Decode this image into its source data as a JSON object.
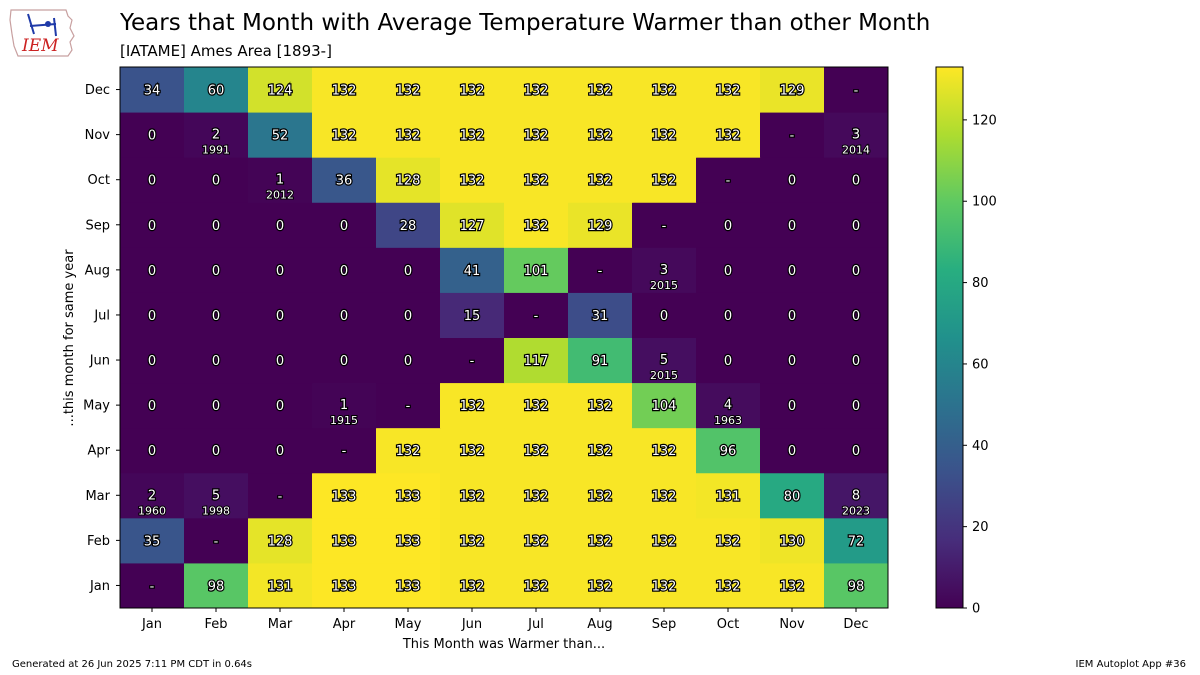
{
  "header": {
    "title": "Years that Month with Average Temperature Warmer than other Month",
    "subtitle": "[IATAME] Ames Area [1893-]"
  },
  "logo": {
    "icon": "iem-logo-icon",
    "text": "IEM"
  },
  "footer": {
    "generated": "Generated at 26 Jun 2025 7:11 PM CDT in 0.64s",
    "app": "IEM Autoplot App #36"
  },
  "chart_data": {
    "type": "heatmap",
    "title": "Years that Month with Average Temperature Warmer than other Month",
    "xlabel": "This Month was Warmer than...",
    "ylabel": "...this month for same year",
    "x_categories": [
      "Jan",
      "Feb",
      "Mar",
      "Apr",
      "May",
      "Jun",
      "Jul",
      "Aug",
      "Sep",
      "Oct",
      "Nov",
      "Dec"
    ],
    "y_categories": [
      "Jan",
      "Feb",
      "Mar",
      "Apr",
      "May",
      "Jun",
      "Jul",
      "Aug",
      "Sep",
      "Oct",
      "Nov",
      "Dec"
    ],
    "missing_label": "-",
    "values": [
      [
        null,
        98,
        131,
        133,
        133,
        132,
        132,
        132,
        132,
        132,
        132,
        98
      ],
      [
        35,
        null,
        128,
        133,
        133,
        132,
        132,
        132,
        132,
        132,
        130,
        72
      ],
      [
        2,
        5,
        null,
        133,
        133,
        132,
        132,
        132,
        132,
        131,
        80,
        8
      ],
      [
        0,
        0,
        0,
        null,
        132,
        132,
        132,
        132,
        132,
        96,
        0,
        0
      ],
      [
        0,
        0,
        0,
        1,
        null,
        132,
        132,
        132,
        104,
        4,
        0,
        0
      ],
      [
        0,
        0,
        0,
        0,
        0,
        null,
        117,
        91,
        5,
        0,
        0,
        0
      ],
      [
        0,
        0,
        0,
        0,
        0,
        15,
        null,
        31,
        0,
        0,
        0,
        0
      ],
      [
        0,
        0,
        0,
        0,
        0,
        41,
        101,
        null,
        3,
        0,
        0,
        0
      ],
      [
        0,
        0,
        0,
        0,
        28,
        127,
        132,
        129,
        null,
        0,
        0,
        0
      ],
      [
        0,
        0,
        1,
        36,
        128,
        132,
        132,
        132,
        132,
        null,
        0,
        0
      ],
      [
        0,
        2,
        52,
        132,
        132,
        132,
        132,
        132,
        132,
        132,
        null,
        3
      ],
      [
        34,
        60,
        124,
        132,
        132,
        132,
        132,
        132,
        132,
        132,
        129,
        null
      ]
    ],
    "annotations": [
      {
        "row": "Mar",
        "col": "Jan",
        "year": "1960"
      },
      {
        "row": "Mar",
        "col": "Feb",
        "year": "1998"
      },
      {
        "row": "Mar",
        "col": "Dec",
        "year": "2023"
      },
      {
        "row": "May",
        "col": "Apr",
        "year": "1915"
      },
      {
        "row": "May",
        "col": "Oct",
        "year": "1963"
      },
      {
        "row": "Jun",
        "col": "Sep",
        "year": "2015"
      },
      {
        "row": "Aug",
        "col": "Sep",
        "year": "2015"
      },
      {
        "row": "Oct",
        "col": "Mar",
        "year": "2012"
      },
      {
        "row": "Nov",
        "col": "Feb",
        "year": "1991"
      },
      {
        "row": "Nov",
        "col": "Dec",
        "year": "2014"
      }
    ],
    "colorbar": {
      "colormap": "viridis",
      "vmin": 0,
      "vmax": 133,
      "ticks": [
        0,
        20,
        40,
        60,
        80,
        100,
        120
      ]
    },
    "grid": false,
    "legend": "colorbar-right"
  }
}
